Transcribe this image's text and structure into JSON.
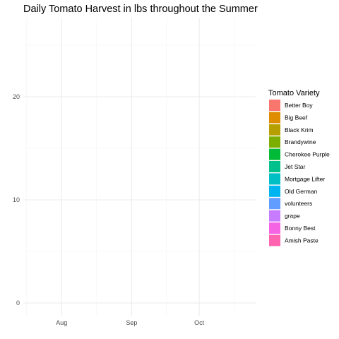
{
  "chart_data": {
    "type": "area",
    "title": "Daily Tomato Harvest in lbs throughout the Summer",
    "xlabel": "",
    "ylabel": "",
    "x_ticks": [
      "Aug",
      "Sep",
      "Oct"
    ],
    "x_range": [
      "2020-07-15",
      "2020-10-26"
    ],
    "y_ticks": [
      0,
      10,
      20
    ],
    "ylim": [
      0,
      26.5
    ],
    "grid": true,
    "legend": {
      "title": "Tomato Variety",
      "position": "right",
      "entries": [
        {
          "name": "Better Boy",
          "color": "#F8766D"
        },
        {
          "name": "Big Beef",
          "color": "#DE8C00"
        },
        {
          "name": "Black Krim",
          "color": "#B79F00"
        },
        {
          "name": "Brandywine",
          "color": "#7CAE00"
        },
        {
          "name": "Cherokee Purple",
          "color": "#00BA38"
        },
        {
          "name": "Jet Star",
          "color": "#00C08B"
        },
        {
          "name": "Mortgage Lifter",
          "color": "#00BFC4"
        },
        {
          "name": "Old German",
          "color": "#00B4F0"
        },
        {
          "name": "volunteers",
          "color": "#619CFF"
        },
        {
          "name": "grape",
          "color": "#C77CFF"
        },
        {
          "name": "Bonny Best",
          "color": "#F564E3"
        },
        {
          "name": "Amish Paste",
          "color": "#FF64B0"
        }
      ]
    },
    "series": []
  }
}
